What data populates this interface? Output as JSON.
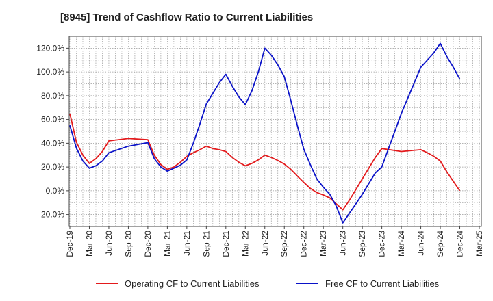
{
  "chart_data": {
    "type": "line",
    "title": "[8945]  Trend of Cashflow Ratio to Current Liabilities",
    "xlabel": "",
    "ylabel": "",
    "x_ticks": [
      "Dec-19",
      "Mar-20",
      "Jun-20",
      "Sep-20",
      "Dec-20",
      "Mar-21",
      "Jun-21",
      "Sep-21",
      "Dec-21",
      "Mar-22",
      "Jun-22",
      "Sep-22",
      "Dec-22",
      "Mar-23",
      "Jun-23",
      "Sep-23",
      "Dec-23",
      "Mar-24",
      "Jun-24",
      "Sep-24",
      "Dec-24",
      "Mar-25"
    ],
    "y_ticks": [
      "-20.0%",
      "0.0%",
      "20.0%",
      "40.0%",
      "60.0%",
      "80.0%",
      "100.0%",
      "120.0%"
    ],
    "ylim": [
      -30,
      130
    ],
    "grid": true,
    "legend_position": "bottom",
    "x": [
      "Dec-19",
      "Jan-20",
      "Feb-20",
      "Mar-20",
      "Apr-20",
      "May-20",
      "Jun-20",
      "Sep-20",
      "Dec-20",
      "Jan-21",
      "Feb-21",
      "Mar-21",
      "Apr-21",
      "May-21",
      "Jun-21",
      "Jul-21",
      "Aug-21",
      "Sep-21",
      "Oct-21",
      "Nov-21",
      "Dec-21",
      "Jan-22",
      "Feb-22",
      "Mar-22",
      "Apr-22",
      "May-22",
      "Jun-22",
      "Jul-22",
      "Aug-22",
      "Sep-22",
      "Oct-22",
      "Nov-22",
      "Dec-22",
      "Jan-23",
      "Feb-23",
      "Mar-23",
      "Apr-23",
      "May-23",
      "Jun-23",
      "Jul-23",
      "Aug-23",
      "Sep-23",
      "Oct-23",
      "Nov-23",
      "Dec-23",
      "Mar-24",
      "Jun-24",
      "Jul-24",
      "Aug-24",
      "Sep-24",
      "Oct-24",
      "Nov-24",
      "Dec-24"
    ],
    "series": [
      {
        "name": "Operating CF to Current Liabilities",
        "color": "#e31a1c",
        "values": [
          65,
          41,
          30,
          23,
          27,
          33,
          42,
          44,
          43,
          30,
          22,
          18,
          20,
          24,
          29,
          32,
          34.5,
          37.5,
          35.5,
          34.5,
          33,
          28,
          24,
          21,
          23,
          26,
          30,
          28,
          25.5,
          22.5,
          18,
          12.5,
          7,
          2,
          -1.5,
          -3.5,
          -6,
          -11,
          -16,
          -8,
          1,
          10,
          19,
          28,
          35.5,
          33,
          34.5,
          32,
          29,
          25,
          16,
          8,
          0
        ]
      },
      {
        "name": "Free CF to Current Liabilities",
        "color": "#0a12c8",
        "values": [
          55,
          36,
          25,
          19,
          21,
          25,
          32,
          37.5,
          40.5,
          27,
          20,
          16.5,
          19,
          21.5,
          26,
          40,
          56,
          73,
          82,
          91,
          98,
          88,
          79,
          72.5,
          84,
          100,
          120,
          114,
          106,
          96,
          76,
          55,
          35,
          22,
          10,
          3,
          -3,
          -13,
          -27,
          -19,
          -11,
          -3,
          6,
          15,
          20,
          65,
          104,
          110,
          116,
          124,
          113,
          104,
          94
        ]
      }
    ]
  }
}
